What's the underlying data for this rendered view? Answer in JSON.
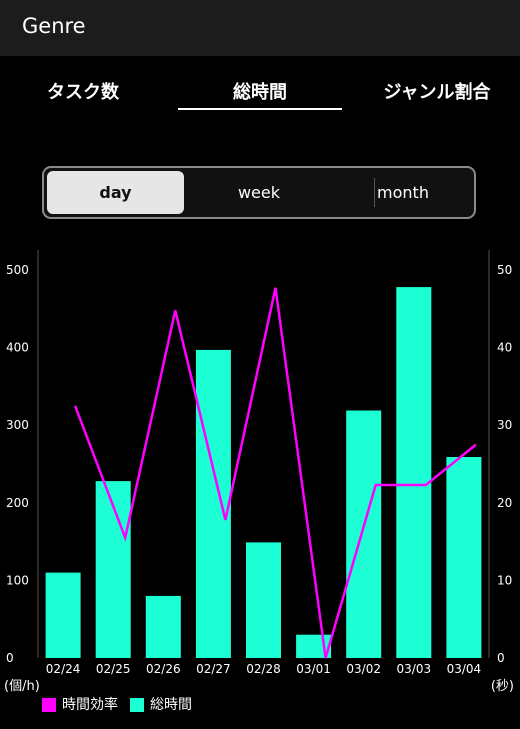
{
  "header": {
    "title": "Genre"
  },
  "tabs": [
    {
      "label": "タスク数"
    },
    {
      "label": "総時間",
      "selected": true
    },
    {
      "label": "ジャンル割合"
    }
  ],
  "segment": {
    "options": [
      "day",
      "week",
      "month"
    ],
    "selected": "day"
  },
  "colors": {
    "bar": "#1cffd4",
    "line": "#ff00ff",
    "background": "#000000"
  },
  "chart_data": {
    "type": "bar",
    "categories": [
      "02/24",
      "02/25",
      "02/26",
      "02/27",
      "02/28",
      "03/01",
      "03/02",
      "03/03",
      "03/04"
    ],
    "series": [
      {
        "name": "総時間",
        "type": "bar",
        "axis": "left",
        "values": [
          110,
          228,
          80,
          397,
          149,
          30,
          319,
          478,
          259
        ]
      },
      {
        "name": "時間効率",
        "type": "line",
        "axis": "right",
        "values": [
          32.5,
          15.5,
          44.8,
          17.8,
          47.7,
          0,
          22.3,
          22.3,
          27.5
        ]
      }
    ],
    "left_axis": {
      "unit": "(個/h)",
      "range": [
        0,
        500
      ],
      "ticks": [
        "0",
        "100",
        "200",
        "300",
        "400",
        "500"
      ]
    },
    "right_axis": {
      "unit": "(秒)",
      "range": [
        0,
        50
      ],
      "ticks": [
        "0",
        "10",
        "20",
        "30",
        "40",
        "50"
      ]
    },
    "legend_position": "bottom-left",
    "grid": false
  }
}
